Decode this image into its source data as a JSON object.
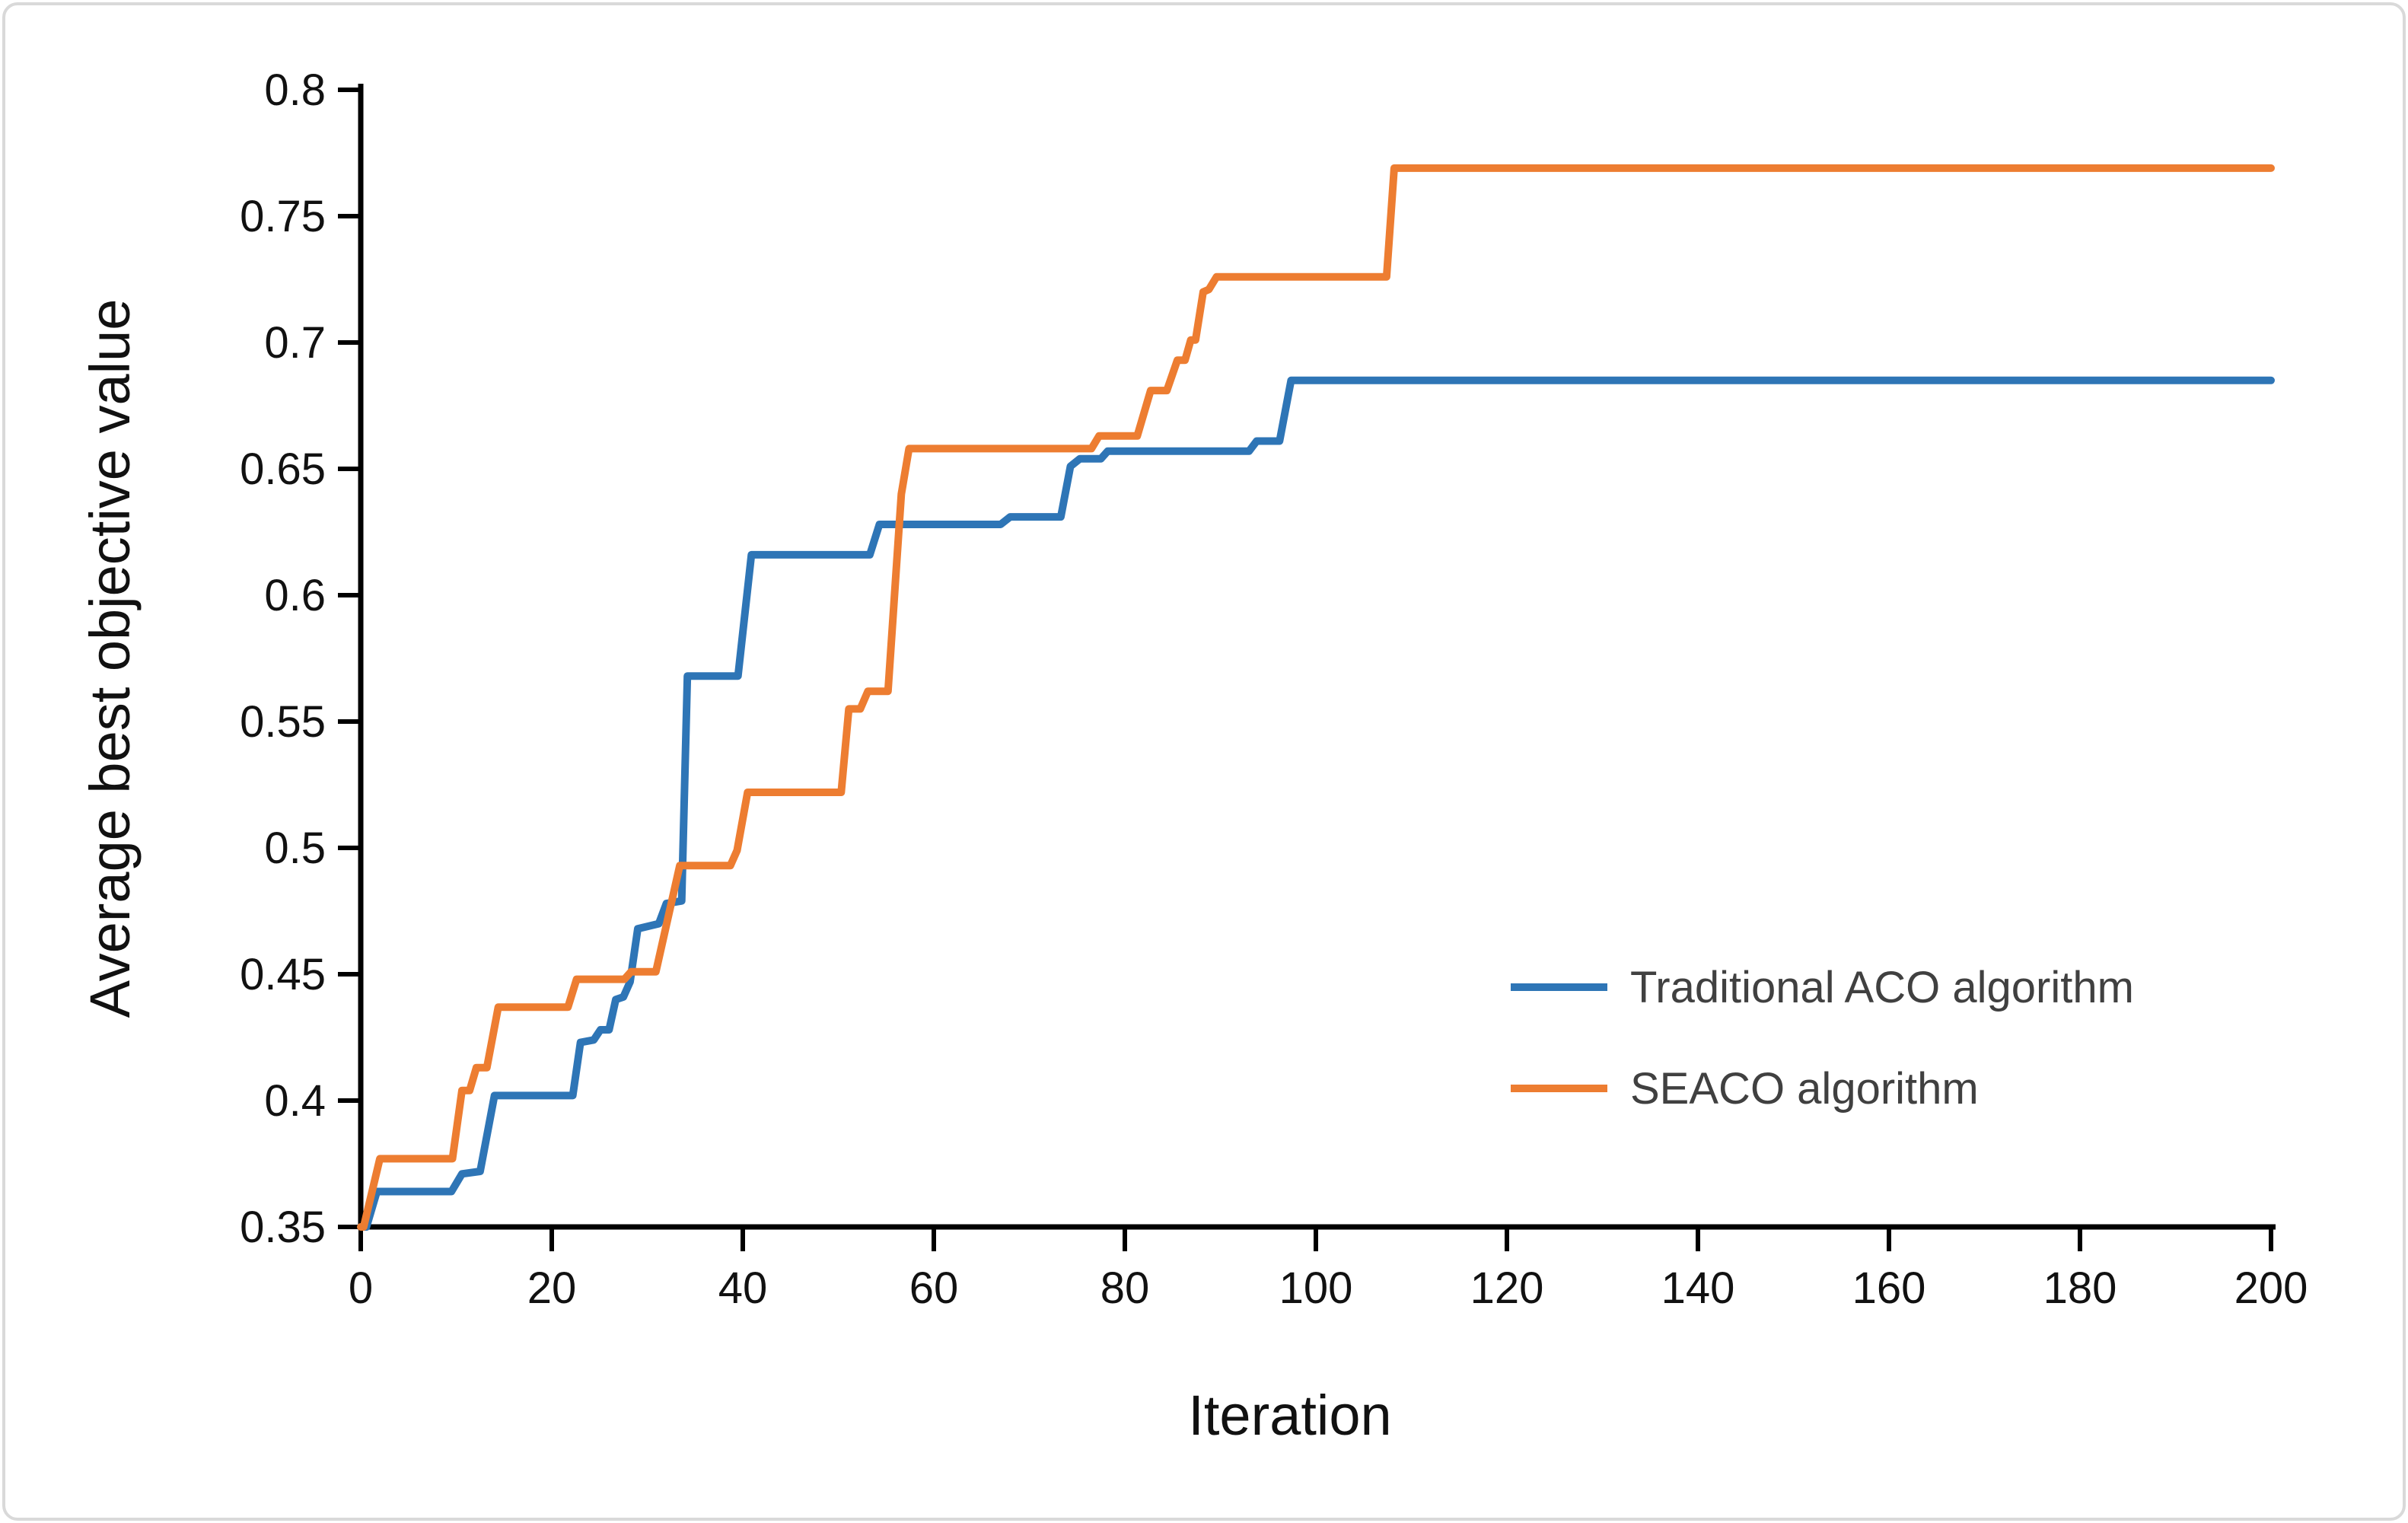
{
  "figure": {
    "background": "#ffffff",
    "border_color": "#d9d9d9",
    "axis_color": "#000000",
    "tick_label_color": "#111111",
    "legend_text_color": "#404040"
  },
  "chart_data": {
    "type": "line",
    "title": "",
    "xlabel": "Iteration",
    "ylabel": "Average best objective value",
    "xlim": [
      0,
      200
    ],
    "ylim": [
      0.35,
      0.8
    ],
    "grid": false,
    "legend_position": "inside-right",
    "x_ticks": [
      "0",
      "20",
      "40",
      "60",
      "80",
      "100",
      "120",
      "140",
      "160",
      "180",
      "200"
    ],
    "y_ticks": [
      "0.35",
      "0.4",
      "0.45",
      "0.5",
      "0.55",
      "0.6",
      "0.65",
      "0.7",
      "0.75",
      "0.8"
    ],
    "series": [
      {
        "name": "Traditional ACO algorithm",
        "color": "#2E75B6",
        "points": [
          [
            0,
            0.35
          ],
          [
            0.6,
            0.35
          ],
          [
            1.7,
            0.364
          ],
          [
            9.5,
            0.364
          ],
          [
            10.6,
            0.371
          ],
          [
            12.5,
            0.372
          ],
          [
            14,
            0.402
          ],
          [
            22.2,
            0.402
          ],
          [
            23,
            0.423
          ],
          [
            24.4,
            0.424
          ],
          [
            25.1,
            0.428
          ],
          [
            26,
            0.428
          ],
          [
            26.7,
            0.44
          ],
          [
            27.5,
            0.441
          ],
          [
            28.2,
            0.447
          ],
          [
            29,
            0.468
          ],
          [
            31.2,
            0.47
          ],
          [
            32,
            0.478
          ],
          [
            33.6,
            0.479
          ],
          [
            34.2,
            0.568
          ],
          [
            39.5,
            0.568
          ],
          [
            40.9,
            0.616
          ],
          [
            53.3,
            0.616
          ],
          [
            54.3,
            0.628
          ],
          [
            67,
            0.628
          ],
          [
            68,
            0.631
          ],
          [
            73.3,
            0.631
          ],
          [
            74.3,
            0.651
          ],
          [
            75.3,
            0.654
          ],
          [
            77.5,
            0.654
          ],
          [
            78.2,
            0.657
          ],
          [
            93,
            0.657
          ],
          [
            93.8,
            0.661
          ],
          [
            96.2,
            0.661
          ],
          [
            97.4,
            0.685
          ],
          [
            200,
            0.685
          ]
        ]
      },
      {
        "name": "SEACO algorithm",
        "color": "#ED7D31",
        "points": [
          [
            0,
            0.35
          ],
          [
            0.3,
            0.35
          ],
          [
            2,
            0.377
          ],
          [
            9.6,
            0.377
          ],
          [
            10.6,
            0.404
          ],
          [
            11.4,
            0.404
          ],
          [
            12.1,
            0.413
          ],
          [
            13.2,
            0.413
          ],
          [
            14.4,
            0.437
          ],
          [
            21.7,
            0.437
          ],
          [
            22.6,
            0.448
          ],
          [
            27.6,
            0.448
          ],
          [
            28.3,
            0.451
          ],
          [
            30.9,
            0.451
          ],
          [
            33.4,
            0.493
          ],
          [
            38.7,
            0.493
          ],
          [
            39.4,
            0.499
          ],
          [
            40.5,
            0.522
          ],
          [
            50.3,
            0.522
          ],
          [
            51.1,
            0.555
          ],
          [
            52.3,
            0.555
          ],
          [
            53.1,
            0.562
          ],
          [
            55.2,
            0.562
          ],
          [
            56.6,
            0.64
          ],
          [
            57.4,
            0.658
          ],
          [
            76.5,
            0.658
          ],
          [
            77.3,
            0.663
          ],
          [
            81.3,
            0.663
          ],
          [
            82.7,
            0.681
          ],
          [
            84.4,
            0.681
          ],
          [
            85.5,
            0.693
          ],
          [
            86.3,
            0.693
          ],
          [
            86.9,
            0.701
          ],
          [
            87.4,
            0.701
          ],
          [
            88.2,
            0.72
          ],
          [
            88.8,
            0.721
          ],
          [
            89.6,
            0.726
          ],
          [
            107.4,
            0.726
          ],
          [
            108.2,
            0.769
          ],
          [
            200,
            0.769
          ]
        ]
      }
    ]
  },
  "legend": {
    "items": [
      {
        "label": "Traditional ACO algorithm",
        "color": "#2E75B6"
      },
      {
        "label": "SEACO algorithm",
        "color": "#ED7D31"
      }
    ]
  }
}
